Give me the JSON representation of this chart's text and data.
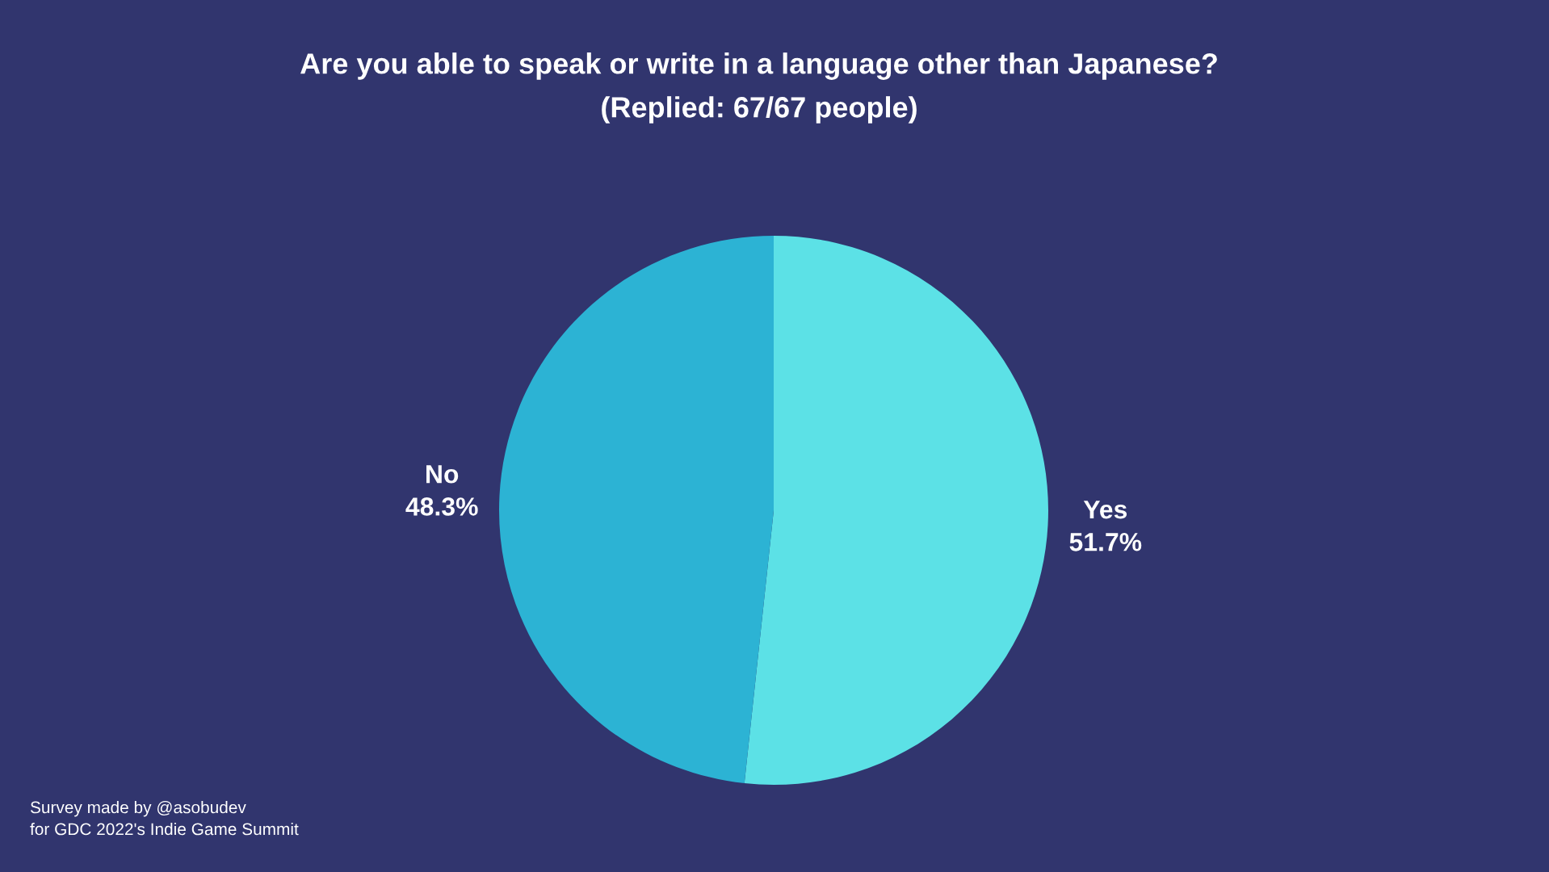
{
  "chart_data": {
    "type": "pie",
    "title": "Are you able to speak or write in a language other than Japanese?",
    "subtitle": "(Replied: 67/67 people)",
    "categories": [
      "Yes",
      "No"
    ],
    "values": [
      51.7,
      48.3
    ],
    "value_labels": [
      "51.7%",
      "48.3%"
    ],
    "colors": [
      "#5ce1e6",
      "#2cb3d4"
    ],
    "annotations": [
      "Survey made by @asobudev\nfor GDC 2022's Indie Game Summit"
    ],
    "legend": false
  }
}
